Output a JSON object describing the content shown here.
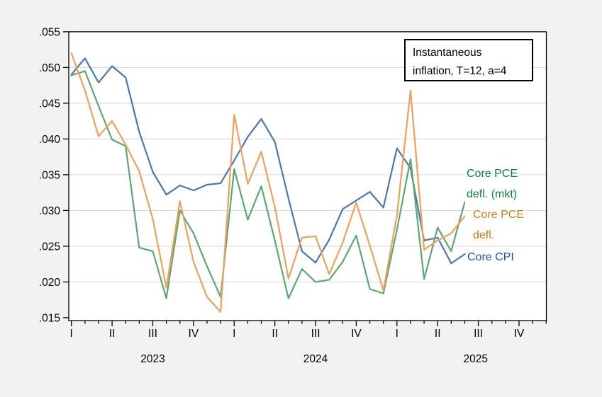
{
  "annotation": {
    "line1": "Instantaneous",
    "line2": "inflation, T=12, a=4"
  },
  "series_labels": {
    "pce_mkt": {
      "line1": "Core PCE",
      "line2": "defl. (mkt)"
    },
    "pce": {
      "line1": "Core PCE",
      "line2": "defl."
    },
    "cpi": {
      "line1": "Core CPI"
    }
  },
  "colors": {
    "background": "#f2f2f2",
    "plot_background": "#ffffff",
    "grid": "#d6d6d6",
    "frame": "#000000",
    "cpi_line": "#4a78ad",
    "pce_line": "#efa05a",
    "pce_mkt_line": "#5ba873",
    "cpi_label": "#1a53a1",
    "pce_label": "#c4800e",
    "pce_mkt_label": "#0c8038"
  },
  "chart_data": {
    "type": "line",
    "title": "Instantaneous inflation, T=12, a=4",
    "x_unit": "month",
    "x_start": "2023-01",
    "x_end": "2025-06",
    "grid": true,
    "ylim": [
      0.015,
      0.055
    ],
    "y_tick_labels": [
      ".055",
      ".050",
      ".045",
      ".040",
      ".035",
      ".030",
      ".025",
      ".020",
      ".015"
    ],
    "y_tick_values": [
      0.055,
      0.05,
      0.045,
      0.04,
      0.035,
      0.03,
      0.025,
      0.02,
      0.015
    ],
    "quarter_tick_labels": [
      "I",
      "II",
      "III",
      "IV",
      "I",
      "II",
      "III",
      "IV",
      "I",
      "II",
      "III",
      "IV"
    ],
    "year_labels": [
      "2023",
      "2024",
      "2025"
    ],
    "series": [
      {
        "name": "Core CPI",
        "color": "#4a78ad",
        "values": [
          0.049,
          0.0513,
          0.0479,
          0.0502,
          0.0486,
          0.041,
          0.0354,
          0.0322,
          0.0335,
          0.0328,
          0.0336,
          0.0338,
          0.037,
          0.0403,
          0.0428,
          0.0396,
          0.0317,
          0.0243,
          0.0227,
          0.0259,
          0.0302,
          0.0314,
          0.0326,
          0.0304,
          0.0387,
          0.0359,
          0.0258,
          0.0262,
          0.0226,
          0.0239
        ]
      },
      {
        "name": "Core PCE defl. (mkt)",
        "color": "#5ba873",
        "values": [
          0.0489,
          0.0495,
          0.0446,
          0.0399,
          0.039,
          0.0248,
          0.0243,
          0.0177,
          0.03,
          0.0268,
          0.0222,
          0.0179,
          0.0358,
          0.0287,
          0.0334,
          0.0258,
          0.0177,
          0.0218,
          0.02,
          0.0203,
          0.0228,
          0.0265,
          0.019,
          0.0184,
          0.0273,
          0.0372,
          0.0204,
          0.0276,
          0.0243,
          0.0312
        ]
      },
      {
        "name": "Core PCE defl.",
        "color": "#efa05a",
        "values": [
          0.052,
          0.0468,
          0.0404,
          0.0425,
          0.0392,
          0.0355,
          0.0288,
          0.0192,
          0.0313,
          0.0228,
          0.0179,
          0.0158,
          0.0434,
          0.0337,
          0.0382,
          0.0305,
          0.0205,
          0.0262,
          0.0264,
          0.0211,
          0.0255,
          0.0311,
          0.0251,
          0.0188,
          0.0293,
          0.0468,
          0.0245,
          0.0258,
          0.0268,
          0.0292
        ]
      }
    ]
  }
}
